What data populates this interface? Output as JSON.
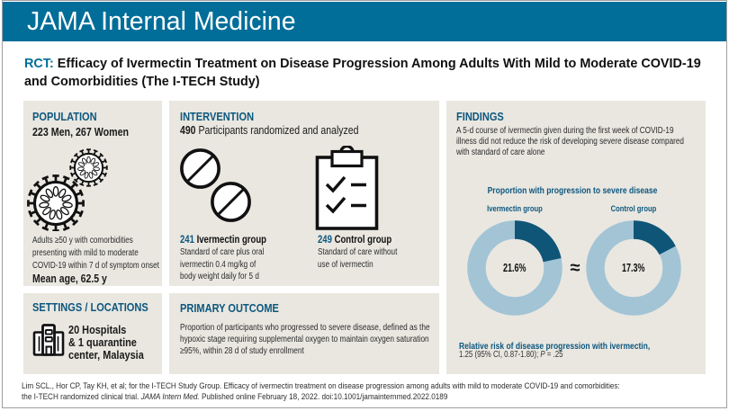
{
  "colors": {
    "teal": "#016e99",
    "dteal": "#0d577f",
    "panel": "#e9e7e0",
    "donut_light": "#a2c4d5",
    "donut_dark": "#0f5577"
  },
  "brand": "JAMA Internal Medicine",
  "title": {
    "prefix": "RCT:",
    "line1": "Efficacy of Ivermectin Treatment on Disease Progression Among Adults With Mild to Moderate COVID-19",
    "line2": "and Comorbidities (The I-TECH Study)"
  },
  "population": {
    "header": "POPULATION",
    "subtitle": "223 Men, 267 Women",
    "icon": "coronavirus-icon",
    "desc_lines": [
      "Adults ≥50 y with comorbidities",
      "presenting with mild to moderate",
      "COVID-19 within 7 d of symptom onset"
    ],
    "mean_age": "Mean age, 62.5 y"
  },
  "settings": {
    "header": "SETTINGS / LOCATIONS",
    "icon": "hospital-icon",
    "lines": [
      "20 Hospitals",
      "& 1 quarantine",
      "center, Malaysia"
    ]
  },
  "intervention": {
    "header": "INTERVENTION",
    "count": "490",
    "count_desc": " Participants randomized and analyzed",
    "icons": [
      "pills-icon",
      "clipboard-checklist-icon"
    ],
    "groups": [
      {
        "n": "241",
        "name": " Ivermectin group",
        "desc_lines": [
          "Standard of care plus oral",
          "ivermectin 0.4 mg/kg of",
          "body weight daily for 5 d"
        ]
      },
      {
        "n": "249",
        "name": " Control group",
        "desc_lines": [
          "Standard of care without",
          "use of ivermectin"
        ]
      }
    ]
  },
  "outcome": {
    "header": "PRIMARY OUTCOME",
    "desc_lines": [
      "Proportion of participants who progressed to severe disease, defined as the",
      "hypoxic stage requiring supplemental oxygen to maintain oxygen saturation",
      "≥95%, within 28 d of study enrollment"
    ]
  },
  "findings": {
    "header": "FINDINGS",
    "desc_lines": [
      "A 5-d course of ivermectin given during the first week of COVID-19",
      "illness did not reduce the risk of developing severe disease compared",
      "with standard of care alone"
    ],
    "approx": "≈",
    "rr_bold": "Relative risk of disease progression with ivermectin,",
    "rr_pre": "1.25 (95% CI, 0.87-1.80); ",
    "rr_p": "P",
    "rr_tail": " = .25"
  },
  "chart_data": {
    "type": "pie",
    "variant": "donut",
    "title": "Proportion with progression to severe disease",
    "series": [
      {
        "name": "Ivermectin group",
        "value_pct": 21.6,
        "label": "21.6%"
      },
      {
        "name": "Control group",
        "value_pct": 17.3,
        "label": "17.3%"
      }
    ],
    "segment_color": "#0f5577",
    "remainder_color": "#a2c4d5",
    "annotation": "≈ (no significant difference)"
  },
  "footer": {
    "line1": "Lim SCL., Hor CP, Tay KH, et al; for the I-TECH Study Group. Efficacy of ivermectin treatment on disease progression among adults with mild to moderate COVID-19 and comorbidities:",
    "line2_pre": "the I-TECH randomized clinical trial. ",
    "line2_italic": "JAMA Intern Med.",
    "line2_post": " Published online February 18, 2022. doi:10.1001/jamainternmed.2022.0189"
  }
}
